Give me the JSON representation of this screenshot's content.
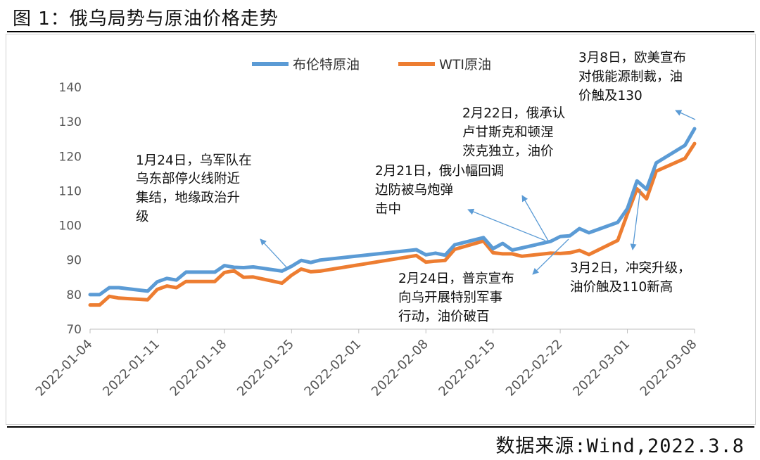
{
  "figure": {
    "title": "图 1：俄乌局势与原油价格走势",
    "source": "数据来源:Wind,2022.3.8"
  },
  "chart_data": {
    "type": "line",
    "title": "",
    "xlabel": "",
    "ylabel": "",
    "ylim": [
      70,
      140
    ],
    "yticks": [
      70,
      80,
      90,
      100,
      110,
      120,
      130,
      140
    ],
    "grid": false,
    "legend_position": "top",
    "x_ticks": [
      "2022-01-04",
      "2022-01-11",
      "2022-01-18",
      "2022-01-25",
      "2022-02-01",
      "2022-02-08",
      "2022-02-15",
      "2022-02-22",
      "2022-03-01",
      "2022-03-08"
    ],
    "x": [
      "2022-01-04",
      "2022-01-05",
      "2022-01-06",
      "2022-01-07",
      "2022-01-10",
      "2022-01-11",
      "2022-01-12",
      "2022-01-13",
      "2022-01-14",
      "2022-01-17",
      "2022-01-18",
      "2022-01-19",
      "2022-01-20",
      "2022-01-21",
      "2022-01-24",
      "2022-01-25",
      "2022-01-26",
      "2022-01-27",
      "2022-01-28",
      "2022-02-07",
      "2022-02-08",
      "2022-02-09",
      "2022-02-10",
      "2022-02-11",
      "2022-02-14",
      "2022-02-15",
      "2022-02-16",
      "2022-02-17",
      "2022-02-18",
      "2022-02-21",
      "2022-02-22",
      "2022-02-23",
      "2022-02-24",
      "2022-02-25",
      "2022-02-28",
      "2022-03-01",
      "2022-03-02",
      "2022-03-03",
      "2022-03-04",
      "2022-03-07",
      "2022-03-08"
    ],
    "series": [
      {
        "name": "布伦特原油",
        "color": "#5b9bd5",
        "values": [
          80.0,
          80.0,
          82.0,
          82.0,
          81.0,
          83.7,
          84.7,
          84.2,
          86.5,
          86.5,
          88.4,
          87.9,
          87.8,
          88.0,
          86.8,
          88.2,
          89.9,
          89.3,
          90.0,
          93.0,
          91.5,
          92.0,
          91.4,
          94.4,
          96.5,
          93.3,
          94.8,
          92.9,
          93.5,
          95.4,
          96.8,
          97.0,
          99.1,
          97.9,
          100.9,
          104.9,
          112.9,
          110.5,
          118.1,
          123.2,
          128.0
        ]
      },
      {
        "name": "WTI原油",
        "color": "#ed7d31",
        "values": [
          77.0,
          77.0,
          79.5,
          79.0,
          78.5,
          81.5,
          82.5,
          82.0,
          83.8,
          83.8,
          86.4,
          86.9,
          85.0,
          85.1,
          83.3,
          85.6,
          87.4,
          86.6,
          86.8,
          91.3,
          89.4,
          89.7,
          89.9,
          93.1,
          95.5,
          92.1,
          91.8,
          91.8,
          91.1,
          92.0,
          91.9,
          92.1,
          92.8,
          91.6,
          95.7,
          103.4,
          110.6,
          107.7,
          115.7,
          119.4,
          123.7
        ]
      }
    ]
  },
  "annotations": {
    "a1": {
      "line1": "1月24日，乌军队在",
      "line2": "乌东部停火线附近",
      "line3": "集结，地缘政治升",
      "line4": "级"
    },
    "a2": {
      "line1": "2月21日，俄小幅回调",
      "line2": "边防被乌炮弹",
      "line3": "击中"
    },
    "a3": {
      "line1": "2月22日，俄承认",
      "line2": "卢甘斯克和顿涅",
      "line3": "茨克独立，油价"
    },
    "a4": {
      "line1": "3月8日，欧美宣布",
      "line2": "对俄能源制裁，油",
      "line3": "价触及130"
    },
    "a5": {
      "line1": "2月24日，普京宣布",
      "line2": "向乌开展特别军事",
      "line3": "行动，油价破百"
    },
    "a6": {
      "line1": "3月2日，冲突升级，",
      "line2": "油价触及110新高"
    }
  }
}
